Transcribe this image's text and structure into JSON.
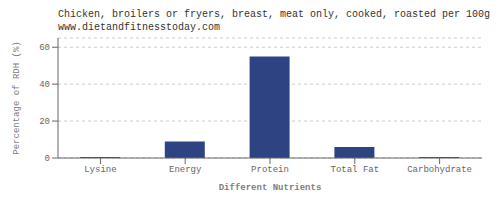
{
  "chart_data": {
    "type": "bar",
    "title": "Chicken, broilers or fryers, breast, meat only, cooked, roasted per 100g",
    "subtitle": "www.dietandfitnesstoday.com",
    "categories": [
      "Lysine",
      "Energy",
      "Protein",
      "Total Fat",
      "Carbohydrate"
    ],
    "values": [
      0.5,
      9,
      55,
      6,
      0.5
    ],
    "color": "#2e4482",
    "xlabel": "Different Nutrients",
    "ylabel": "Percentage of RDH (%)",
    "ylim": [
      0,
      65
    ],
    "yticks": [
      0,
      20,
      40,
      60
    ],
    "grid": true
  }
}
